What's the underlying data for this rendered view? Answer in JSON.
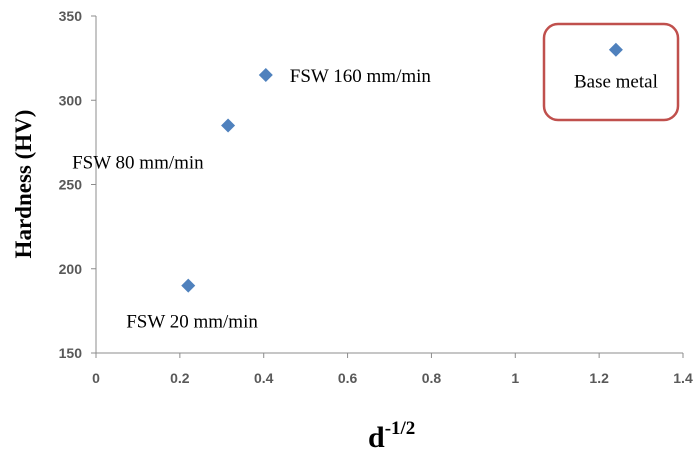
{
  "chart_data": {
    "type": "scatter",
    "title": "",
    "xlabel": "d",
    "xlabel_superscript": "-1/2",
    "ylabel": "Hardness  (HV)",
    "xlim": [
      0,
      1.4
    ],
    "ylim": [
      150,
      350
    ],
    "x_ticks": [
      0,
      0.2,
      0.4,
      0.6,
      0.8,
      1,
      1.2,
      1.4
    ],
    "x_tick_labels": [
      "0",
      "0.2",
      "0.4",
      "0.6",
      "0.8",
      "1",
      "1.2",
      "1.4"
    ],
    "y_ticks": [
      150,
      200,
      250,
      300,
      350
    ],
    "y_tick_labels": [
      "150",
      "200",
      "250",
      "300",
      "350"
    ],
    "grid": false,
    "marker": "diamond",
    "marker_color": "#4F81BD",
    "highlight_box_color": "#C0504D",
    "points": [
      {
        "x": 0.22,
        "y": 190,
        "label": "FSW 20 mm/min"
      },
      {
        "x": 0.315,
        "y": 285,
        "label": "FSW 80 mm/min"
      },
      {
        "x": 0.405,
        "y": 315,
        "label": "FSW 160 mm/min"
      },
      {
        "x": 1.24,
        "y": 330,
        "label": "Base metal",
        "highlighted": true
      }
    ]
  }
}
